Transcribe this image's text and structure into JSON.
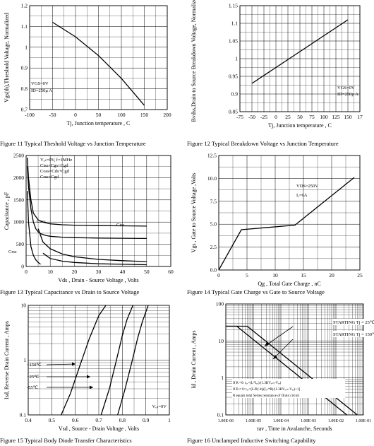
{
  "chart_data": [
    {
      "id": "fig11",
      "type": "line",
      "caption": "Figure    11    Typical Theshold Voltage vs Junction Temperature",
      "xlabel": "Tj, Junction temperature , C",
      "ylabel": "Vgs(th),Threshold Voltage, Normalized",
      "xlim": [
        -100,
        200
      ],
      "ylim": [
        0.7,
        1.2
      ],
      "xticks": [
        "-100",
        "-50",
        "0",
        "50",
        "100",
        "150",
        "200"
      ],
      "yticks": [
        "0.7",
        "0.8",
        "0.9",
        "1",
        "1.1",
        "1.2"
      ],
      "grid": true,
      "annotations": [
        "VGS=0V",
        "ID=250µ A"
      ],
      "series": [
        {
          "x": [
            -50,
            0,
            50,
            100,
            150
          ],
          "y": [
            1.12,
            1.05,
            0.96,
            0.85,
            0.72
          ]
        }
      ]
    },
    {
      "id": "fig12",
      "type": "line",
      "caption": "Figure    12    Typical Breakdown Voltage vs Junction Temperature",
      "xlabel": "Tj, Junction temperature , C",
      "ylabel": "Bvdss,Drain to Source Breakdown Voltage, Normalized",
      "xlim": [
        -75,
        175
      ],
      "ylim": [
        0.85,
        1.15
      ],
      "xticks": [
        "-75",
        "-50",
        "-25",
        "0",
        "25",
        "50",
        "75",
        "100",
        "125",
        "150",
        "17"
      ],
      "yticks": [
        "0.85",
        "0.9",
        "0.95",
        "1",
        "1.05",
        "1.1",
        "1.15"
      ],
      "grid": true,
      "annotations": [
        "VGS=0V",
        "ID=250µ A"
      ],
      "series": [
        {
          "x": [
            -50,
            150
          ],
          "y": [
            0.93,
            1.11
          ]
        }
      ]
    },
    {
      "id": "fig13",
      "type": "line",
      "caption": "Figure    13    Typical Capacitance vs Drain to Source Voltage",
      "xlabel": "Vds , Drain - Source Voltage , Volts",
      "ylabel": "Capacitance , pF",
      "xlim": [
        0,
        60
      ],
      "ylim": [
        0,
        2500
      ],
      "xticks": [
        "0",
        "10",
        "20",
        "30",
        "40",
        "50",
        "60"
      ],
      "yticks": [
        "0",
        "500",
        "1000",
        "1500",
        "2000",
        "2500"
      ],
      "grid": true,
      "annotations": [
        "Vₑₛ=0V, f=1MHz",
        "Ciss=Cgs+Cgd",
        "Coss=Cds+Cgd",
        "Crss=Cgd"
      ],
      "series": [
        {
          "name": "Ciss",
          "x": [
            0.5,
            1,
            2,
            3,
            5,
            7,
            10,
            15,
            20,
            30,
            40,
            50
          ],
          "y": [
            2450,
            2000,
            1500,
            1200,
            1050,
            1000,
            960,
            940,
            930,
            920,
            915,
            910
          ]
        },
        {
          "name": "Coss",
          "x": [
            0.5,
            1,
            2,
            3,
            4,
            5,
            6,
            8,
            10,
            15,
            20,
            30,
            40,
            50
          ],
          "y": [
            2250,
            1800,
            1300,
            1000,
            850,
            780,
            740,
            700,
            680,
            660,
            650,
            640,
            635,
            630
          ]
        },
        {
          "name": "Coss",
          "x": [
            5,
            7,
            10,
            15,
            20,
            30,
            40,
            50
          ],
          "y": [
            850,
            550,
            400,
            280,
            220,
            160,
            130,
            110
          ]
        },
        {
          "name": "Crss",
          "x": [
            0.5,
            1,
            2,
            3,
            4,
            5,
            6
          ],
          "y": [
            1700,
            1000,
            450,
            250,
            150,
            90,
            50
          ]
        },
        {
          "name": "Crss",
          "x": [
            7,
            10,
            15,
            20,
            30,
            40,
            50
          ],
          "y": [
            300,
            180,
            120,
            90,
            60,
            50,
            40
          ]
        }
      ]
    },
    {
      "id": "fig14",
      "type": "line",
      "caption": "Figure    14    Typical Gate Charge vs Gate to Source Voltage",
      "xlabel": "Qg , Total Gate Charge , nC",
      "ylabel": "Vgs , Gate to Source Voltage ,Volts",
      "xlim": [
        0,
        25
      ],
      "ylim": [
        0,
        12.5
      ],
      "xticks": [
        "0",
        "5",
        "10",
        "15",
        "20",
        "25"
      ],
      "yticks": [
        "0.0",
        "2.5",
        "5.0",
        "7.5",
        "10.0",
        "12.5"
      ],
      "grid": true,
      "annotations": [
        "VDS=250V",
        "Iₑ=6A"
      ],
      "series": [
        {
          "x": [
            0,
            4,
            13.5,
            24
          ],
          "y": [
            0,
            4.4,
            4.9,
            10.1
          ]
        }
      ]
    },
    {
      "id": "fig15",
      "type": "line",
      "caption": "Figure    15    Typical Body Diode Transfer Characteristics",
      "xlabel": "Vsd , Source - Drain Voltage , Volts",
      "ylabel": "Isd, Reverse Drain Current , Amps",
      "xlim": [
        0.4,
        1.0
      ],
      "ylim": [
        0.1,
        10
      ],
      "scale": "log-y",
      "xticks": [
        "0.4",
        "0.5",
        "0.6",
        "0.7",
        "0.8",
        "0.9",
        "1"
      ],
      "yticks": [
        "0.1",
        "1",
        "10"
      ],
      "grid": true,
      "annotations": [
        "Vₑₛ=0V"
      ],
      "series": [
        {
          "name": "+150℃",
          "x": [
            0.54,
            0.58,
            0.62,
            0.66,
            0.7,
            0.73
          ],
          "y": [
            0.1,
            0.25,
            0.8,
            2.5,
            6.5,
            10
          ]
        },
        {
          "name": "+25℃",
          "x": [
            0.71,
            0.745,
            0.775,
            0.8,
            0.82,
            0.845
          ],
          "y": [
            0.1,
            0.3,
            1,
            2.8,
            5.5,
            10
          ]
        },
        {
          "name": "-55℃",
          "x": [
            0.78,
            0.81,
            0.84,
            0.865,
            0.885,
            0.91
          ],
          "y": [
            0.1,
            0.28,
            0.9,
            2.5,
            5,
            10
          ]
        }
      ]
    },
    {
      "id": "fig16",
      "type": "line",
      "caption": "Figure    16    Unclamped Inductive Switching Capability",
      "xlabel": "tav , Time in Avalanche, Seconds",
      "ylabel": "Id , Drain Current , Amps",
      "xlim": [
        1e-06,
        0.1
      ],
      "ylim": [
        0.1,
        100
      ],
      "scale": "log-log",
      "xticks": [
        "1.00E-06",
        "1.00E-05",
        "1.00E-04",
        "1.00E-03",
        "1.00E-02",
        "1.00E-01"
      ],
      "yticks": [
        "0.1",
        "1",
        "10",
        "100"
      ],
      "grid": true,
      "annotations": [
        "STARTING Tj = 25℃",
        "STARTING Tj = 150℃",
        "If R =0: tₐᵥ=(L*Iₐᵥ)/(1.3BVₑₛₛ-Vₑₑ)",
        "If R ≠ 0: tₐᵥ=(L/R) ln[(Iₐₛ*R)/(1.3BVₑₛₛ-Vₑₑ)+1]",
        "R equals total Series resistance of Drain circuit"
      ],
      "series": [
        {
          "name": "STARTING Tj = 25℃",
          "x": [
            1e-06,
            6e-06,
            0.06
          ],
          "y": [
            25,
            25,
            0.1
          ]
        },
        {
          "name": "STARTING Tj = 150℃",
          "x": [
            1e-06,
            2.5e-06,
            0.025
          ],
          "y": [
            25,
            25,
            0.1
          ]
        }
      ]
    }
  ]
}
